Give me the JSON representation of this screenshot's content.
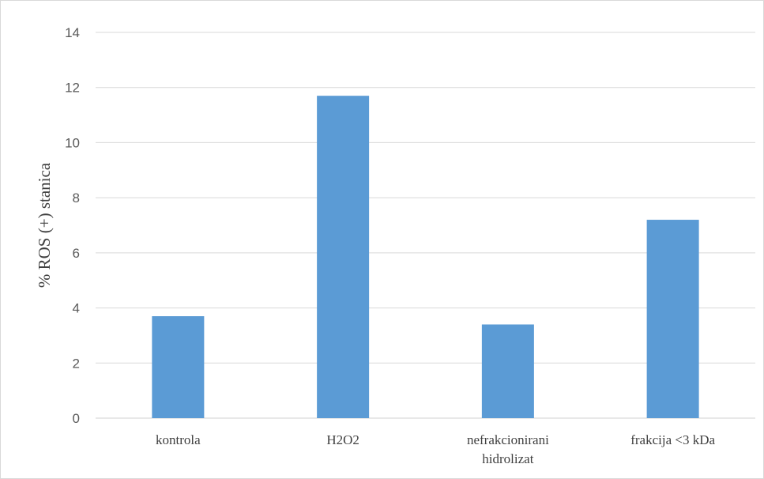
{
  "chart_data": {
    "type": "bar",
    "categories": [
      [
        "kontrola"
      ],
      [
        "H2O2"
      ],
      [
        "nefrakcionirani",
        "hidrolizat"
      ],
      [
        "frakcija <3 kDa"
      ]
    ],
    "values": [
      3.7,
      11.7,
      3.4,
      7.2
    ],
    "ylabel": "% ROS (+) stanica",
    "xlabel": "",
    "ylim": [
      0,
      14
    ],
    "yticks": [
      0,
      2,
      4,
      6,
      8,
      10,
      12,
      14
    ],
    "grid": true,
    "legend": "none",
    "bar_color": "#5b9bd5",
    "grid_color": "#d9d9d9"
  }
}
